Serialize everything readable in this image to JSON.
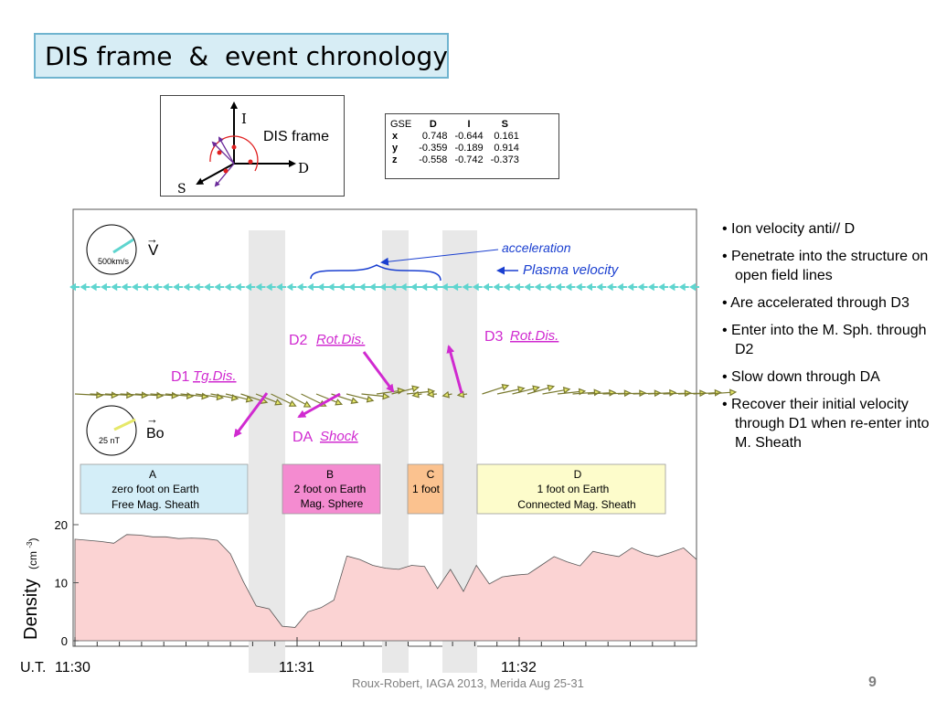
{
  "slide": {
    "title": "DIS frame  &  event chronology",
    "footer": "Roux-Robert, IAGA 2013, Merida Aug 25-31",
    "page_number": "9"
  },
  "dis_frame": {
    "label": "DIS frame",
    "axis_labels": {
      "i": "I",
      "d": "D",
      "s": "S"
    }
  },
  "gse_table": {
    "corner": "GSE",
    "columns": [
      "D",
      "I",
      "S"
    ],
    "rows": [
      {
        "label": "x",
        "values": [
          "0.748",
          "-0.644",
          "0.161"
        ]
      },
      {
        "label": "y",
        "values": [
          "-0.359",
          "-0.189",
          "0.914"
        ]
      },
      {
        "label": "z",
        "values": [
          "-0.558",
          "-0.742",
          "-0.373"
        ]
      }
    ]
  },
  "plot": {
    "velocity_scale": {
      "value": "500km/s",
      "label": "V",
      "arrow": "→"
    },
    "field_scale": {
      "value": "25 nT",
      "label": "Bo",
      "arrow": "→"
    },
    "annotations": {
      "acceleration": "acceleration",
      "plasma_velocity": "Plasma velocity",
      "d1_prefix": "D1",
      "d1_name": "Tg.Dis.",
      "d2_prefix": "D2",
      "d2_name": "Rot.Dis.",
      "d3_prefix": "D3",
      "d3_name": "Rot.Dis.",
      "da_prefix": "DA",
      "da_name": "Shock"
    },
    "regions": [
      {
        "letter": "A",
        "line1": "zero foot on Earth",
        "line2": "Free Mag. Sheath",
        "color": "#d4eef8"
      },
      {
        "letter": "B",
        "line1": "2 foot on Earth",
        "line2": "Mag. Sphere",
        "color": "#f48bd0"
      },
      {
        "letter": "C",
        "line1": "1 foot",
        "line2": "",
        "color": "#fbc28f"
      },
      {
        "letter": "D",
        "line1": "1  foot on Earth",
        "line2": "Connected Mag. Sheath",
        "color": "#fdfccb"
      }
    ],
    "density_axis": {
      "label": "Density",
      "unit": "(cm ",
      "unit_exp": "-3",
      "unit_close": ")",
      "ticks": [
        "0",
        "10",
        "20"
      ]
    },
    "time_axis": {
      "prefix": "U.T.",
      "ticks": [
        "11:30",
        "11:31",
        "11:32"
      ]
    },
    "density_profile": [
      17.5,
      17.3,
      17.1,
      16.8,
      18.3,
      18.2,
      17.9,
      17.9,
      17.6,
      17.7,
      17.6,
      17.3,
      15.0,
      10.2,
      6.0,
      5.5,
      2.5,
      2.3,
      5.0,
      5.7,
      7.0,
      14.6,
      14.0,
      13.0,
      12.5,
      12.3,
      13.0,
      12.8,
      9.0,
      12.3,
      8.5,
      13.0,
      9.8,
      11.0,
      11.3,
      11.5,
      13.0,
      14.5,
      13.6,
      12.9,
      15.4,
      14.9,
      14.5,
      16.0,
      15.0,
      14.5,
      15.2,
      16.0,
      14.0
    ]
  },
  "bullets": [
    "Ion velocity anti// D",
    "Penetrate into the structure on open field lines",
    "Are accelerated through D3",
    "Enter into the M. Sph. through D2",
    "Slow down through DA",
    "Recover their initial velocity through D1 when re-enter into M. Sheath"
  ],
  "colors": {
    "title_fill": "#d7edf5",
    "title_border": "#6fb4cf",
    "velocity_arrow": "#5fd5cf",
    "field_arrow": "#e6e86a",
    "annotation_magenta": "#d02ad0",
    "annotation_blue": "#1a3fd0",
    "density_fill": "#fbd3d3",
    "shade": "#e8e8e8"
  }
}
